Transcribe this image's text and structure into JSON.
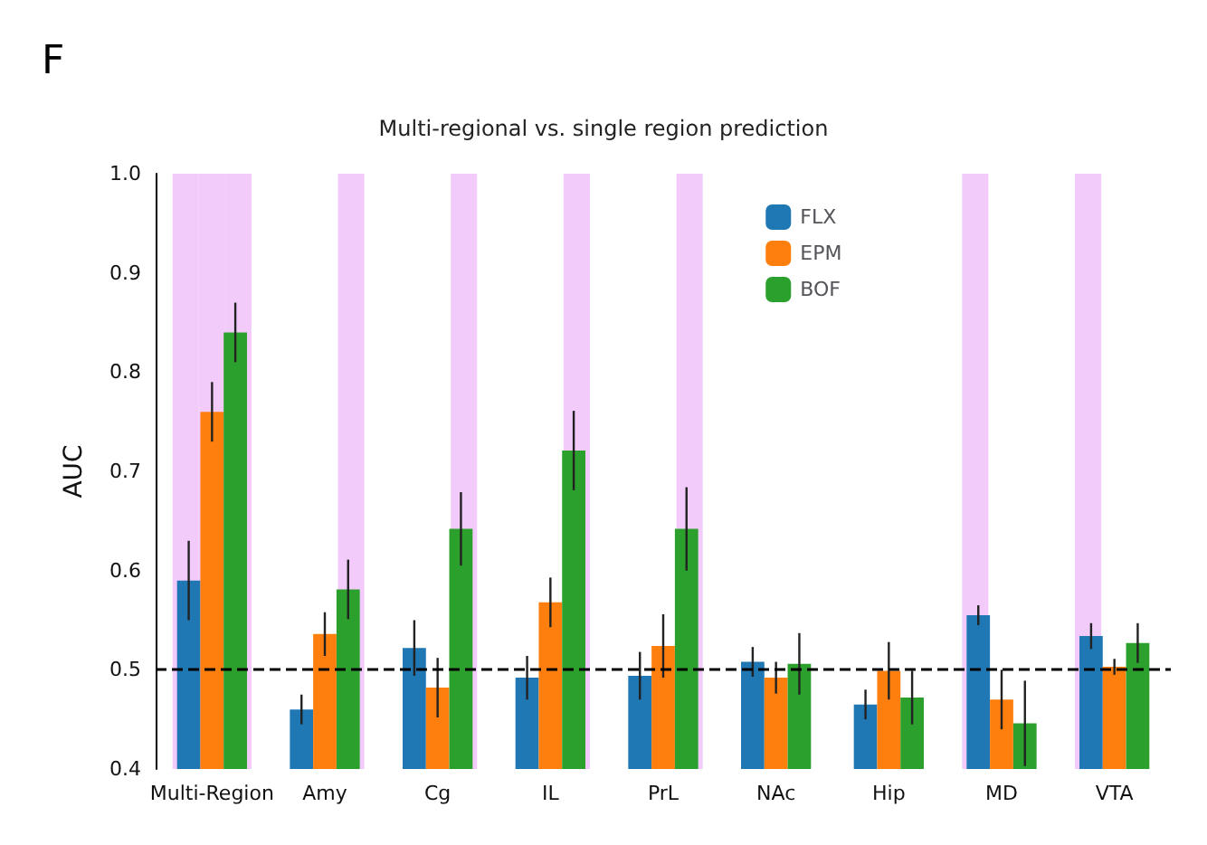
{
  "chart_data": {
    "type": "bar",
    "title": "Multi-regional vs. single region prediction",
    "ylabel": "AUC",
    "annotations": [
      "F"
    ],
    "categories": [
      "Multi-Region",
      "Amy",
      "Cg",
      "IL",
      "PrL",
      "NAc",
      "Hip",
      "MD",
      "VTA"
    ],
    "series": [
      {
        "name": "FLX",
        "color": "#1f77b4",
        "values": [
          0.59,
          0.46,
          0.522,
          0.492,
          0.494,
          0.508,
          0.465,
          0.555,
          0.534
        ],
        "errors": [
          0.04,
          0.015,
          0.028,
          0.022,
          0.024,
          0.015,
          0.015,
          0.01,
          0.013
        ]
      },
      {
        "name": "EPM",
        "color": "#ff7f0e",
        "values": [
          0.76,
          0.536,
          0.482,
          0.568,
          0.524,
          0.492,
          0.499,
          0.47,
          0.503
        ],
        "errors": [
          0.03,
          0.022,
          0.03,
          0.025,
          0.032,
          0.016,
          0.029,
          0.03,
          0.008
        ]
      },
      {
        "name": "BOF",
        "color": "#2ca02c",
        "values": [
          0.84,
          0.581,
          0.642,
          0.721,
          0.642,
          0.506,
          0.472,
          0.446,
          0.527
        ],
        "errors": [
          0.03,
          0.03,
          0.037,
          0.04,
          0.042,
          0.031,
          0.027,
          0.043,
          0.02
        ]
      },
      {
        "color": "#f2cbfb",
        "values": [
          1.0,
          null,
          null,
          null,
          null,
          null,
          null,
          1.0,
          1.0
        ]
      },
      {
        "color": "#f2cbfb",
        "values": [
          1.0,
          null,
          null,
          null,
          null,
          null,
          null,
          null,
          null
        ]
      },
      {
        "color": "#f2cbfb",
        "values": [
          1.0,
          1.0,
          1.0,
          1.0,
          1.0,
          null,
          null,
          null,
          null
        ]
      }
    ],
    "ylim": [
      0.4,
      1.0
    ],
    "yticks": [
      0.4,
      0.5,
      0.6,
      0.7,
      0.8,
      0.9,
      {
        "value": 1.0,
        "label": "1.0"
      }
    ],
    "ref_lines": [
      {
        "axis": "y",
        "value": 0.5,
        "line_style": "dashed",
        "color": "#000000"
      }
    ],
    "legend": "top",
    "grid": false
  }
}
